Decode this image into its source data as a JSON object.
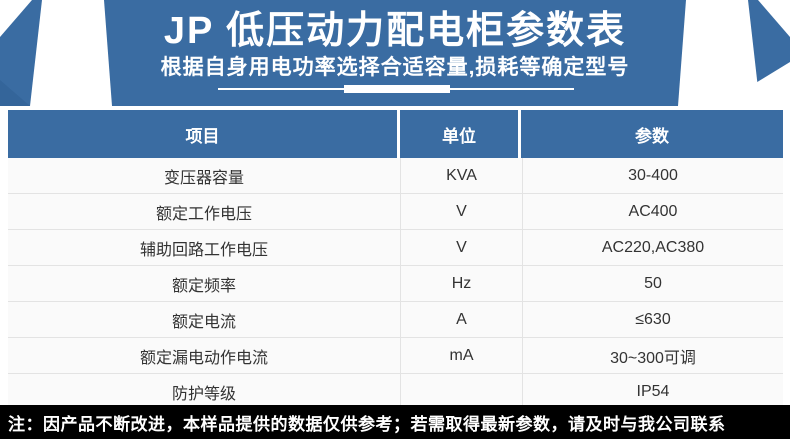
{
  "banner": {
    "title": "JP 低压动力配电柜参数表",
    "subtitle": "根据自身用电功率选择合适容量,损耗等确定型号",
    "bg_color": "#3a6ca2",
    "stripe_color": "#ffffff"
  },
  "table": {
    "headers": [
      "项目",
      "单位",
      "参数"
    ],
    "header_bg": "#3a6ca2",
    "rows": [
      {
        "item": "变压器容量",
        "unit": "KVA",
        "param": "30-400"
      },
      {
        "item": "额定工作电压",
        "unit": "V",
        "param": "AC400"
      },
      {
        "item": "辅助回路工作电压",
        "unit": "V",
        "param": "AC220,AC380"
      },
      {
        "item": "额定频率",
        "unit": "Hz",
        "param": "50"
      },
      {
        "item": "额定电流",
        "unit": "A",
        "param": "≤630"
      },
      {
        "item": "额定漏电动作电流",
        "unit": "mA",
        "param": "30~300可调"
      },
      {
        "item": "防护等级",
        "unit": "",
        "param": "IP54"
      }
    ]
  },
  "footer": {
    "note": "注：因产品不断改进，本样品提供的数据仅供参考；若需取得最新参数，请及时与我公司联系",
    "bg_color": "#000000"
  }
}
